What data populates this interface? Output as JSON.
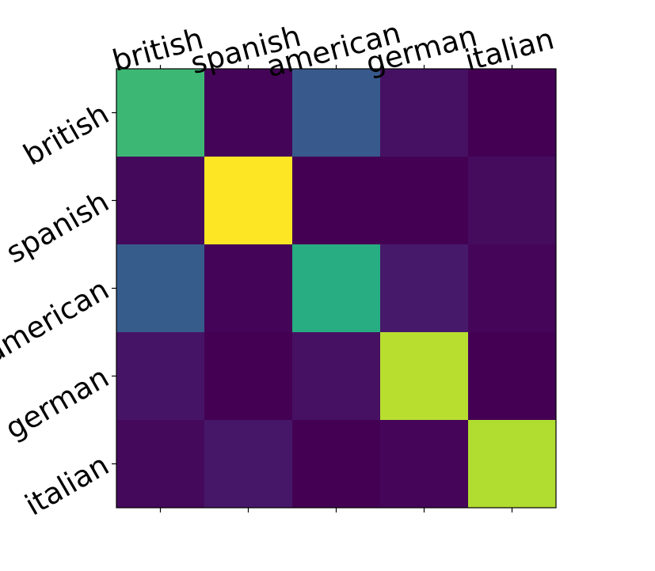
{
  "chart_data": {
    "type": "heatmap",
    "title": "",
    "xlabel": "",
    "ylabel": "",
    "x_categories": [
      "british",
      "spanish",
      "american",
      "german",
      "italian"
    ],
    "y_categories": [
      "british",
      "spanish",
      "american",
      "german",
      "italian"
    ],
    "x_tick_position": "top",
    "x_tick_rotation_deg": -15,
    "y_tick_rotation_deg": -30,
    "colormap": "viridis",
    "value_range": [
      0,
      1
    ],
    "colorbar": false,
    "grid": false,
    "values": [
      [
        0.68,
        0.01,
        0.28,
        0.06,
        0.0
      ],
      [
        0.03,
        1.0,
        0.0,
        0.0,
        0.04
      ],
      [
        0.29,
        0.01,
        0.63,
        0.09,
        0.02
      ],
      [
        0.07,
        0.0,
        0.06,
        0.9,
        0.0
      ],
      [
        0.03,
        0.08,
        0.0,
        0.02,
        0.89
      ]
    ]
  }
}
